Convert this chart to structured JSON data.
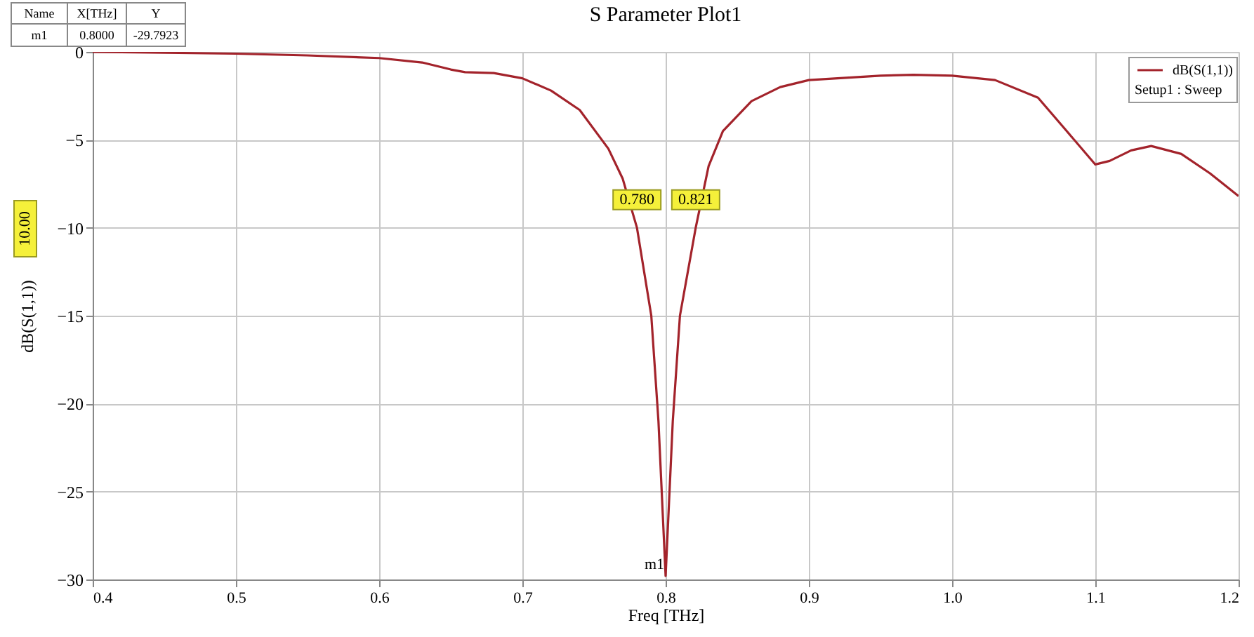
{
  "chart_data": {
    "type": "line",
    "title": "S Parameter Plot1",
    "xlabel": "Freq [THz]",
    "ylabel": "dB(S(1,1))",
    "x": [
      0.4,
      0.45,
      0.5,
      0.55,
      0.6,
      0.63,
      0.65,
      0.66,
      0.68,
      0.7,
      0.72,
      0.74,
      0.76,
      0.77,
      0.78,
      0.79,
      0.795,
      0.8,
      0.805,
      0.81,
      0.821,
      0.83,
      0.84,
      0.86,
      0.88,
      0.9,
      0.95,
      0.973,
      1.0,
      1.03,
      1.06,
      1.08,
      1.1,
      1.11,
      1.125,
      1.139,
      1.16,
      1.18,
      1.2
    ],
    "series": [
      {
        "name": "dB(S(1,1))",
        "color": "#a3232b",
        "values": [
          0,
          -0.05,
          -0.1,
          -0.2,
          -0.35,
          -0.6,
          -1.0,
          -1.15,
          -1.2,
          -1.5,
          -2.2,
          -3.3,
          -5.5,
          -7.2,
          -10,
          -15,
          -21,
          -29.8,
          -21,
          -15,
          -10,
          -6.5,
          -4.5,
          -2.8,
          -2.0,
          -1.6,
          -1.35,
          -1.3,
          -1.35,
          -1.6,
          -2.6,
          -4.5,
          -6.4,
          -6.2,
          -5.6,
          -5.35,
          -5.8,
          -6.9,
          -8.2
        ]
      }
    ],
    "xlim": [
      0.4,
      1.2
    ],
    "xticks": [
      0.4,
      0.5,
      0.6,
      0.7,
      0.8,
      0.9,
      {
        "value": 1.0,
        "label": "1.0"
      },
      1.1,
      1.2
    ],
    "ylim": [
      -30,
      0
    ],
    "yticks": [
      -30,
      -25,
      -20,
      -15,
      -10,
      -5,
      0
    ],
    "grid": true,
    "legend": "top right",
    "marker": "none",
    "line_style": "solid",
    "annotations": [
      {
        "text": "0.780",
        "x": 0.78,
        "y": -10
      },
      {
        "text": "0.821",
        "x": 0.821,
        "y": -10
      },
      {
        "text": "m1",
        "x": 0.8,
        "y": -29.8
      },
      "10.00",
      "Setup1 : Sweep",
      "Name",
      "X[THz]",
      "Y",
      "m1",
      "0.8000",
      "-29.7923"
    ]
  }
}
